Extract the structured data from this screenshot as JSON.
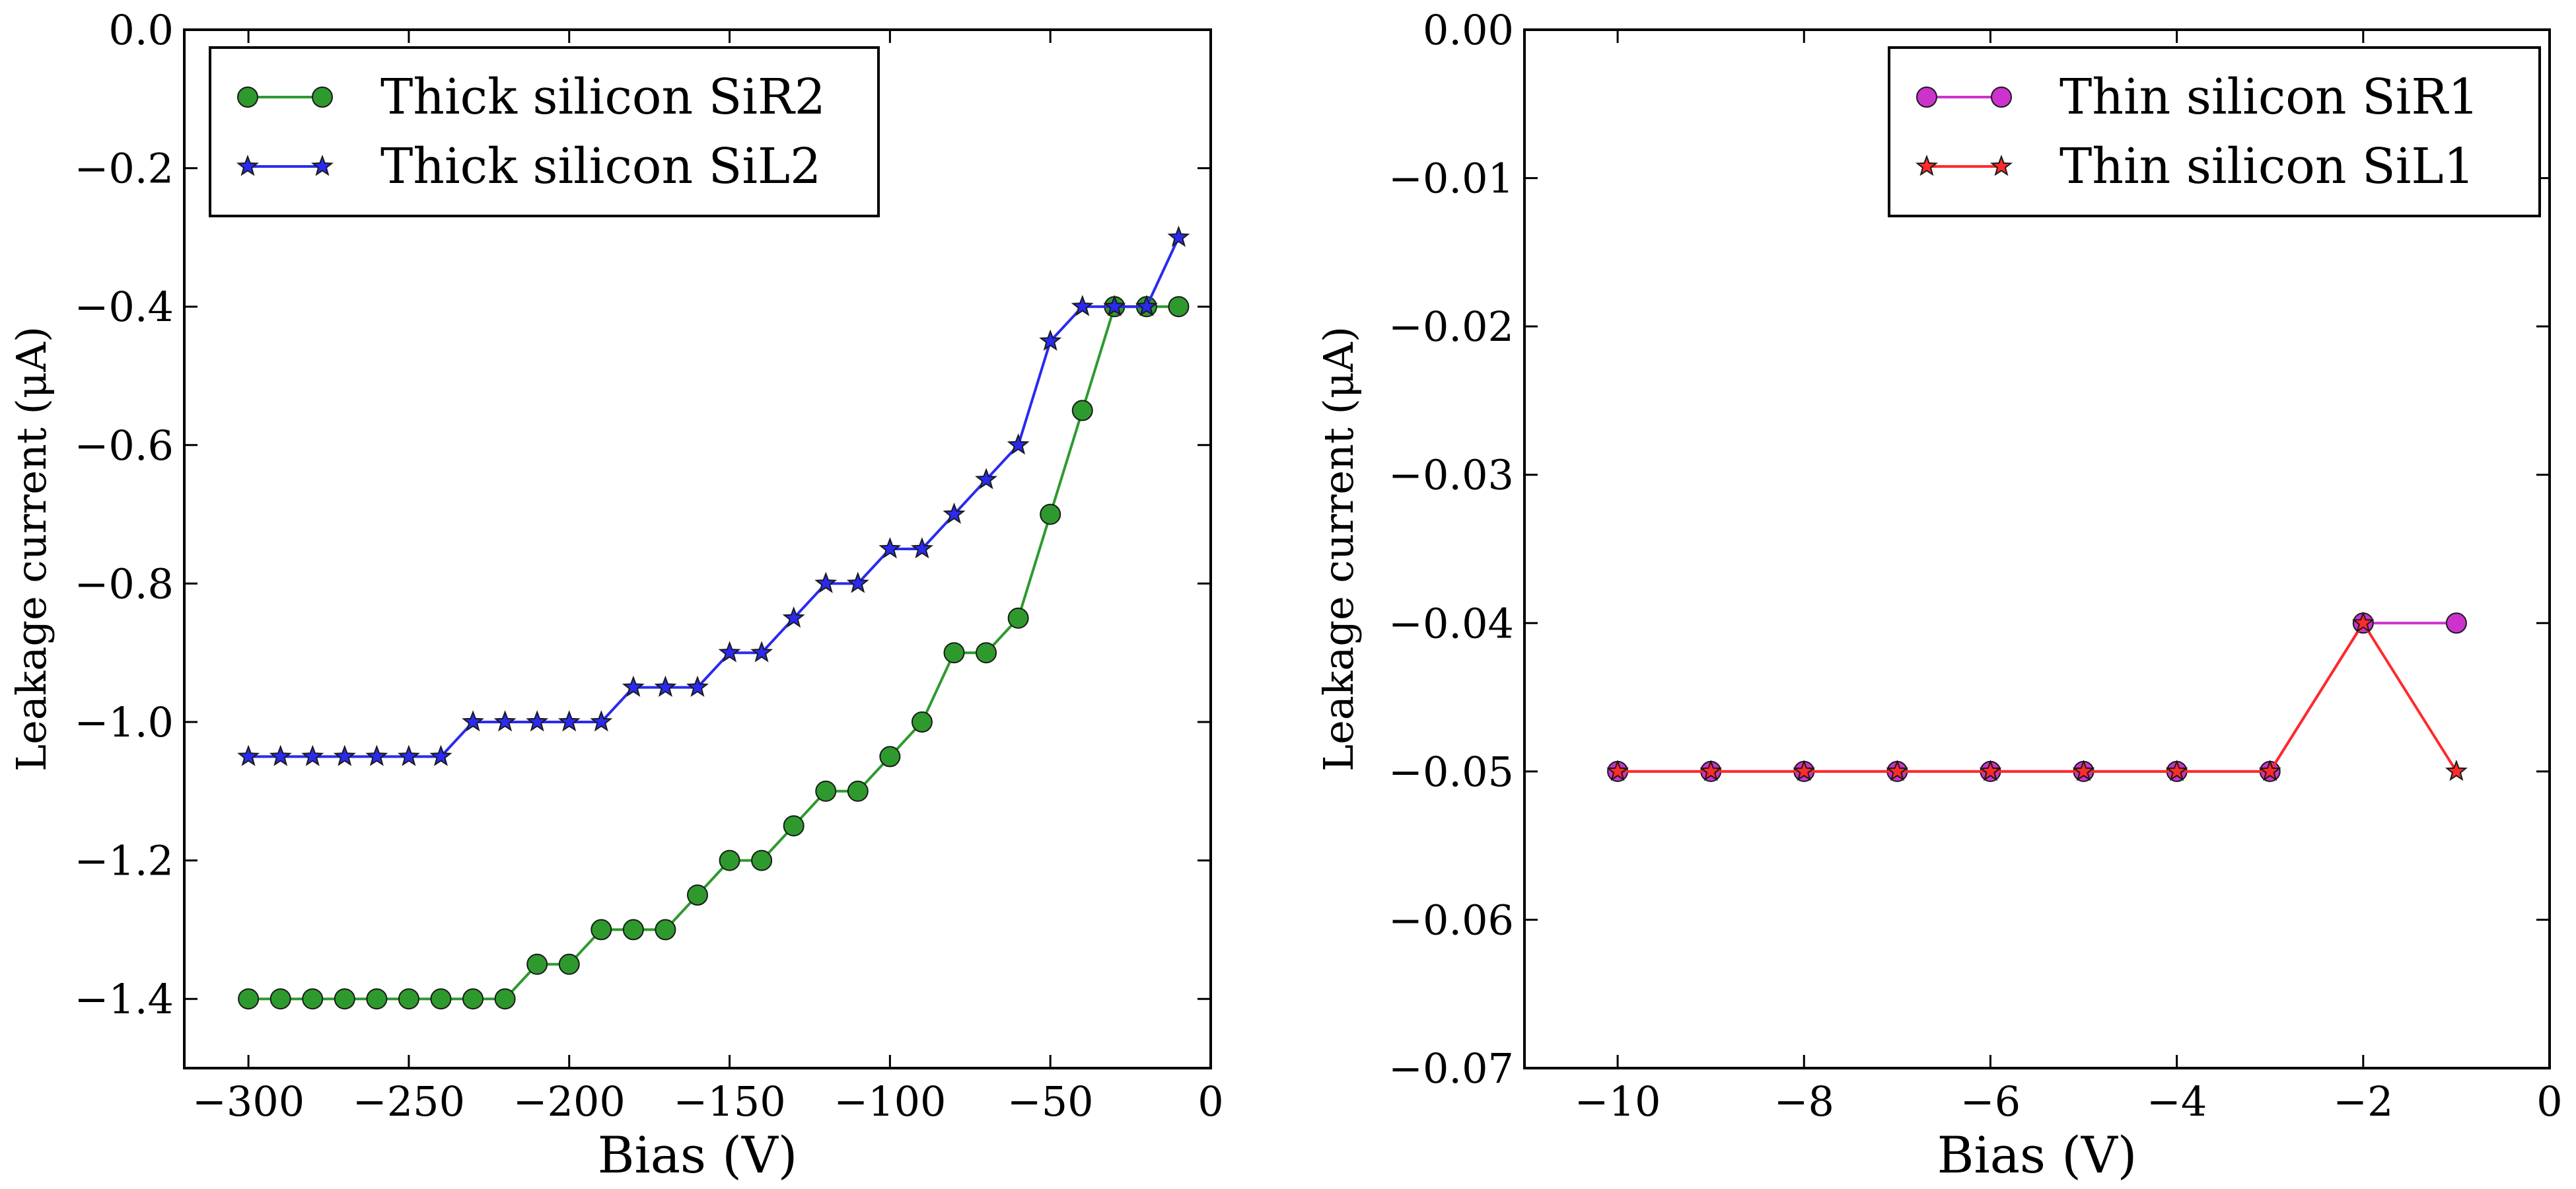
{
  "chart_data": [
    {
      "type": "line",
      "xlabel": "Bias (V)",
      "ylabel": "Leakage current (μA)",
      "xlim": [
        -320,
        0
      ],
      "ylim": [
        -1.5,
        0.0
      ],
      "xticks": [
        -300,
        -250,
        -200,
        -150,
        -100,
        -50,
        0
      ],
      "xtick_labels": [
        "−300",
        "−250",
        "−200",
        "−150",
        "−100",
        "−50",
        "0"
      ],
      "yticks": [
        -1.4,
        -1.2,
        -1.0,
        -0.8,
        -0.6,
        -0.4,
        -0.2,
        0.0
      ],
      "ytick_labels": [
        "−1.4",
        "−1.2",
        "−1.0",
        "−0.8",
        "−0.6",
        "−0.4",
        "−0.2",
        "0.0"
      ],
      "grid": false,
      "legend_placement": "top-left",
      "series": [
        {
          "name": "Thick silicon SiR2",
          "marker": "circle",
          "color": "#2e9a2e",
          "x": [
            -300,
            -290,
            -280,
            -270,
            -260,
            -250,
            -240,
            -230,
            -220,
            -210,
            -200,
            -190,
            -180,
            -170,
            -160,
            -150,
            -140,
            -130,
            -120,
            -110,
            -100,
            -90,
            -80,
            -70,
            -60,
            -50,
            -40,
            -30,
            -20,
            -10
          ],
          "y": [
            -1.4,
            -1.4,
            -1.4,
            -1.4,
            -1.4,
            -1.4,
            -1.4,
            -1.4,
            -1.4,
            -1.35,
            -1.35,
            -1.3,
            -1.3,
            -1.3,
            -1.25,
            -1.2,
            -1.2,
            -1.15,
            -1.1,
            -1.1,
            -1.05,
            -1.0,
            -0.9,
            -0.9,
            -0.85,
            -0.7,
            -0.55,
            -0.4,
            -0.4,
            -0.4
          ]
        },
        {
          "name": "Thick silicon SiL2",
          "marker": "star",
          "color": "#2a2af0",
          "x": [
            -300,
            -290,
            -280,
            -270,
            -260,
            -250,
            -240,
            -230,
            -220,
            -210,
            -200,
            -190,
            -180,
            -170,
            -160,
            -150,
            -140,
            -130,
            -120,
            -110,
            -100,
            -90,
            -80,
            -70,
            -60,
            -50,
            -40,
            -30,
            -20,
            -10
          ],
          "y": [
            -1.05,
            -1.05,
            -1.05,
            -1.05,
            -1.05,
            -1.05,
            -1.05,
            -1.0,
            -1.0,
            -1.0,
            -1.0,
            -1.0,
            -0.95,
            -0.95,
            -0.95,
            -0.9,
            -0.9,
            -0.85,
            -0.8,
            -0.8,
            -0.75,
            -0.75,
            -0.7,
            -0.65,
            -0.6,
            -0.45,
            -0.4,
            -0.4,
            -0.4,
            -0.3
          ]
        }
      ]
    },
    {
      "type": "line",
      "xlabel": "Bias (V)",
      "ylabel": "Leakage current (μA)",
      "xlim": [
        -11,
        0
      ],
      "ylim": [
        -0.07,
        0.0
      ],
      "xticks": [
        -10,
        -8,
        -6,
        -4,
        -2,
        0
      ],
      "xtick_labels": [
        "−10",
        "−8",
        "−6",
        "−4",
        "−2",
        "0"
      ],
      "yticks": [
        -0.07,
        -0.06,
        -0.05,
        -0.04,
        -0.03,
        -0.02,
        -0.01,
        0.0
      ],
      "ytick_labels": [
        "−0.07",
        "−0.06",
        "−0.05",
        "−0.04",
        "−0.03",
        "−0.02",
        "−0.01",
        "0.00"
      ],
      "grid": false,
      "legend_placement": "top-right",
      "series": [
        {
          "name": "Thin silicon SiR1",
          "marker": "circle",
          "color": "#cc33cc",
          "x": [
            -10,
            -9,
            -8,
            -7,
            -6,
            -5,
            -4,
            -3,
            -2,
            -1
          ],
          "y": [
            -0.05,
            -0.05,
            -0.05,
            -0.05,
            -0.05,
            -0.05,
            -0.05,
            -0.05,
            -0.04,
            -0.04
          ]
        },
        {
          "name": "Thin silicon SiL1",
          "marker": "star",
          "color": "#ff2a2a",
          "x": [
            -10,
            -9,
            -8,
            -7,
            -6,
            -5,
            -4,
            -3,
            -2,
            -1
          ],
          "y": [
            -0.05,
            -0.05,
            -0.05,
            -0.05,
            -0.05,
            -0.05,
            -0.05,
            -0.05,
            -0.04,
            -0.05
          ]
        }
      ]
    }
  ]
}
